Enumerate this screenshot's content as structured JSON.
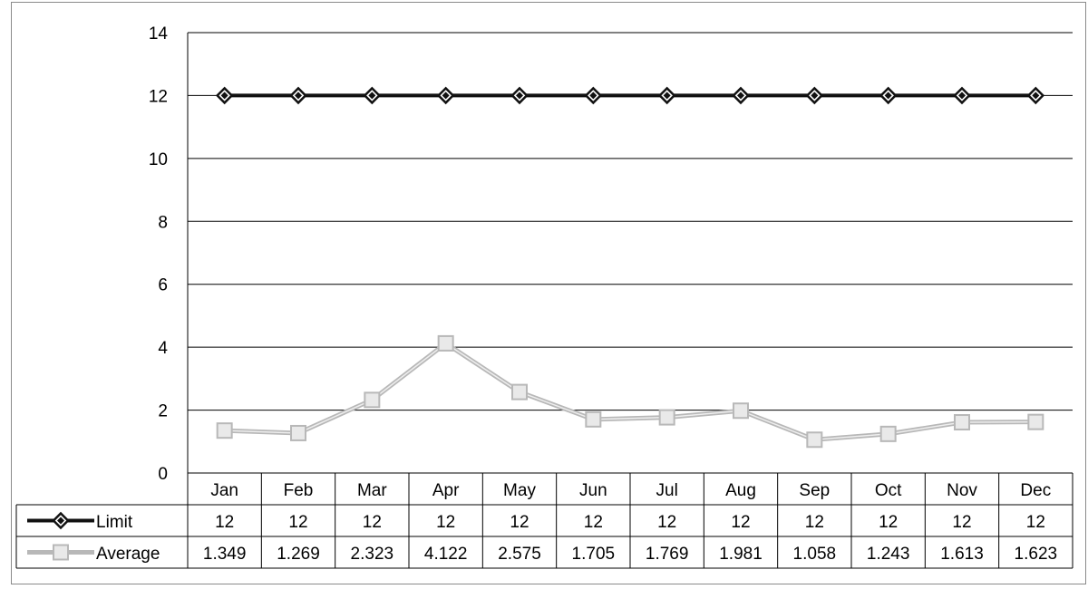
{
  "chart_data": {
    "type": "line",
    "categories": [
      "Jan",
      "Feb",
      "Mar",
      "Apr",
      "May",
      "Jun",
      "Jul",
      "Aug",
      "Sep",
      "Oct",
      "Nov",
      "Dec"
    ],
    "series": [
      {
        "name": "Limit",
        "values": [
          12,
          12,
          12,
          12,
          12,
          12,
          12,
          12,
          12,
          12,
          12,
          12
        ],
        "color": "#111111",
        "marker": "diamond"
      },
      {
        "name": "Average",
        "values": [
          1.349,
          1.269,
          2.323,
          4.122,
          2.575,
          1.705,
          1.769,
          1.981,
          1.058,
          1.243,
          1.613,
          1.623
        ],
        "color": "#b8b8b8",
        "marker": "square"
      }
    ],
    "ylim": [
      0,
      14
    ],
    "yticks": [
      "0",
      "2",
      "4",
      "6",
      "8",
      "10",
      "12",
      "14"
    ],
    "table": {
      "rows": [
        {
          "label": "Limit",
          "cells": [
            "12",
            "12",
            "12",
            "12",
            "12",
            "12",
            "12",
            "12",
            "12",
            "12",
            "12",
            "12"
          ]
        },
        {
          "label": "Average",
          "cells": [
            "1.349",
            "1.269",
            "2.323",
            "4.122",
            "2.575",
            "1.705",
            "1.769",
            "1.981",
            "1.058",
            "1.243",
            "1.613",
            "1.623"
          ]
        }
      ]
    },
    "grid": true,
    "legend": "data-table"
  }
}
